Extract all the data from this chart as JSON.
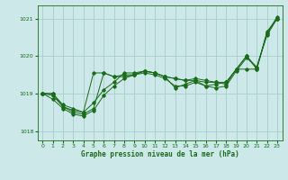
{
  "title": "Graphe pression niveau de la mer (hPa)",
  "bg_color": "#cce8e8",
  "grid_color": "#aacccc",
  "line_color": "#1a6b1a",
  "xlim": [
    -0.5,
    23.5
  ],
  "ylim": [
    1017.75,
    1021.35
  ],
  "yticks": [
    1018,
    1019,
    1020,
    1021
  ],
  "xticks": [
    0,
    1,
    2,
    3,
    4,
    5,
    6,
    7,
    8,
    9,
    10,
    11,
    12,
    13,
    14,
    15,
    16,
    17,
    18,
    19,
    20,
    21,
    22,
    23
  ],
  "series": [
    [
      1019.0,
      1018.95,
      1018.65,
      1018.55,
      1018.5,
      1019.55,
      1019.55,
      1019.45,
      1019.45,
      1019.5,
      1019.6,
      1019.55,
      1019.45,
      1019.15,
      1019.25,
      1019.35,
      1019.2,
      1019.25,
      1019.3,
      1019.65,
      1019.65,
      1019.65,
      1020.6,
      1021.05
    ],
    [
      1019.0,
      1019.0,
      1018.65,
      1018.5,
      1018.45,
      1018.6,
      1019.55,
      1019.45,
      1019.5,
      1019.5,
      1019.6,
      1019.55,
      1019.45,
      1019.4,
      1019.35,
      1019.4,
      1019.35,
      1019.3,
      1019.3,
      1019.65,
      1020.0,
      1019.65,
      1020.65,
      1021.0
    ],
    [
      1019.0,
      1019.0,
      1018.7,
      1018.6,
      1018.5,
      1018.75,
      1019.1,
      1019.3,
      1019.55,
      1019.55,
      1019.6,
      1019.55,
      1019.45,
      1019.4,
      1019.35,
      1019.35,
      1019.3,
      1019.3,
      1019.25,
      1019.65,
      1020.0,
      1019.7,
      1020.6,
      1021.0
    ],
    [
      1019.0,
      1018.85,
      1018.6,
      1018.45,
      1018.4,
      1018.55,
      1018.95,
      1019.2,
      1019.4,
      1019.5,
      1019.55,
      1019.5,
      1019.4,
      1019.2,
      1019.2,
      1019.3,
      1019.2,
      1019.15,
      1019.2,
      1019.6,
      1019.95,
      1019.7,
      1020.55,
      1021.0
    ]
  ]
}
